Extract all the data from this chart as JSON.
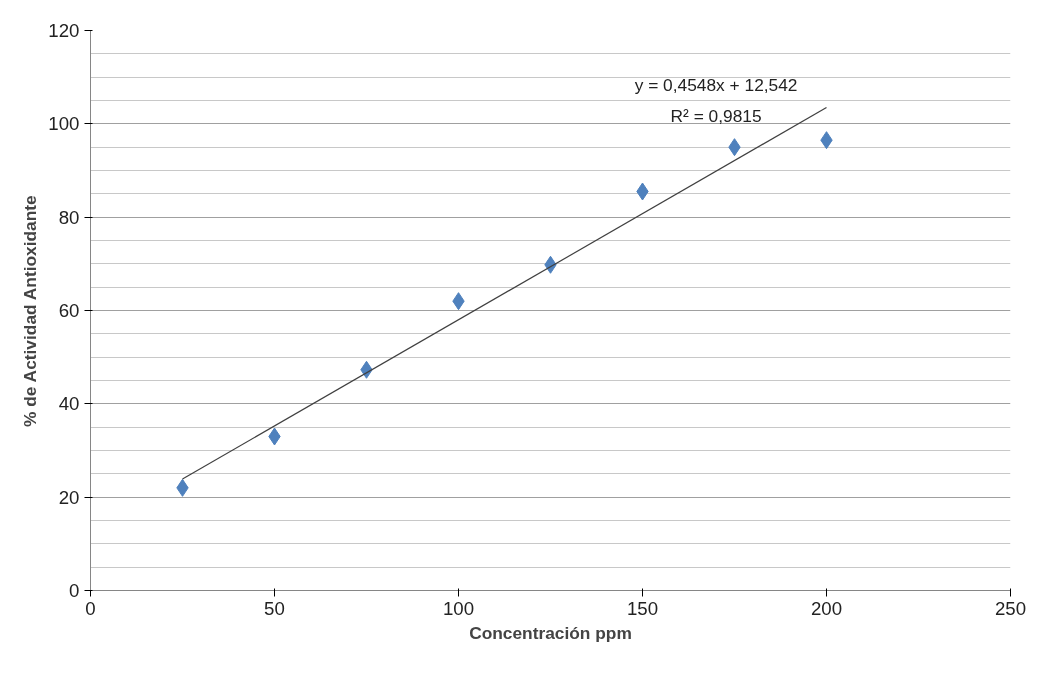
{
  "chart_data": {
    "type": "scatter",
    "xlabel": "Concentración ppm",
    "ylabel": "% de Actividad Antioxidante",
    "x": [
      25,
      50,
      75,
      100,
      125,
      150,
      175,
      200
    ],
    "series": [
      {
        "color": "#4f81bd",
        "marker": "diamond",
        "values": [
          22,
          33,
          47.3,
          62,
          69.8,
          85.5,
          95,
          96.5
        ]
      },
      {
        "type": "line",
        "color": "#404040",
        "marker": "none",
        "x": [
          25,
          200
        ],
        "values": [
          23.9,
          103.5
        ]
      }
    ],
    "annotations": [
      "y = 0,4548x + 12,542",
      "R² = 0,9815"
    ],
    "xlim": [
      0,
      250
    ],
    "xticks": [
      0,
      50,
      100,
      150,
      200,
      250
    ],
    "ylim": [
      0,
      120
    ],
    "yticks": [
      0,
      20,
      40,
      60,
      80,
      100,
      120
    ],
    "grid": "y"
  }
}
